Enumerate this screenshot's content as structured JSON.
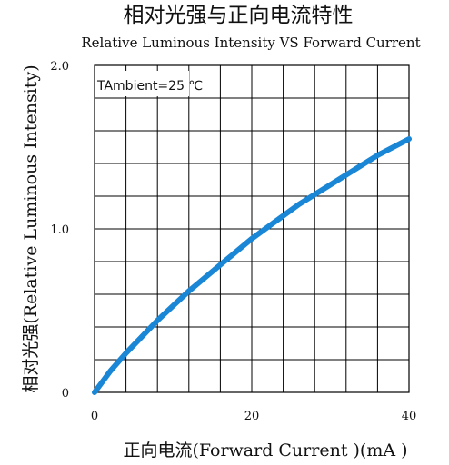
{
  "chart_data": {
    "type": "line",
    "title": "相对光强与正向电流特性",
    "subtitle": "Relative Luminous Intensity VS Forward Current",
    "xlabel": "正向电流(Forward  Current )(mA )",
    "ylabel": "相对光强(Relative  Luminous  Intensity)",
    "annotation": "TAmbient=25 ℃",
    "xlim": [
      0,
      40
    ],
    "ylim": [
      0,
      2.0
    ],
    "x_ticks": [
      {
        "value": 0,
        "label": "0"
      },
      {
        "value": 20,
        "label": "20"
      },
      {
        "value": 40,
        "label": "40"
      }
    ],
    "y_ticks": [
      {
        "value": 0,
        "label": "0"
      },
      {
        "value": 1.0,
        "label": "1.0"
      },
      {
        "value": 2.0,
        "label": "2.0"
      }
    ],
    "grid": true,
    "grid_x_step": 4,
    "grid_y_step": 0.2,
    "series_color": "#1a86d6",
    "x": [
      0,
      2,
      4,
      6,
      8,
      10,
      12,
      14,
      16,
      18,
      20,
      22,
      24,
      26,
      28,
      30,
      32,
      34,
      36,
      38,
      40
    ],
    "series": [
      {
        "values": [
          0,
          0.13,
          0.24,
          0.34,
          0.44,
          0.53,
          0.62,
          0.7,
          0.78,
          0.86,
          0.94,
          1.01,
          1.08,
          1.15,
          1.21,
          1.27,
          1.33,
          1.39,
          1.45,
          1.5,
          1.55
        ]
      }
    ]
  }
}
